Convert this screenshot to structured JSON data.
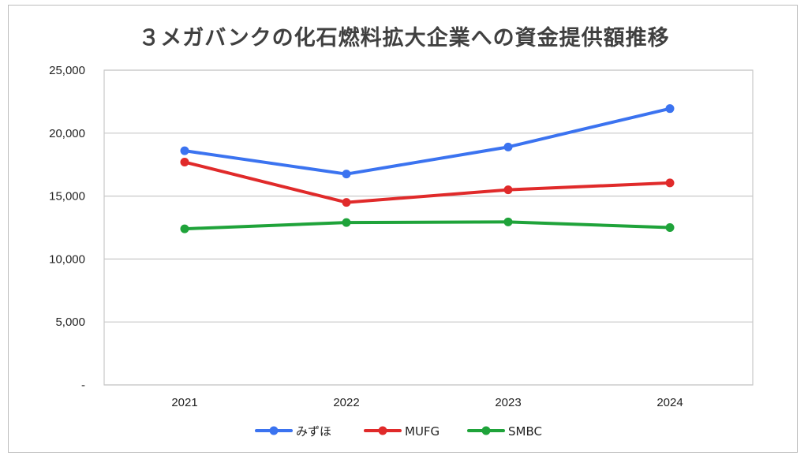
{
  "chart_data": {
    "type": "line",
    "title": "３メガバンクの化石燃料拡大企業への資金提供額推移",
    "categories": [
      "2021",
      "2022",
      "2023",
      "2024"
    ],
    "series": [
      {
        "name": "みずほ",
        "color": "#3b73f0",
        "values": [
          18600,
          16750,
          18900,
          21950
        ]
      },
      {
        "name": "MUFG",
        "color": "#e02a2a",
        "values": [
          17700,
          14500,
          15500,
          16050
        ]
      },
      {
        "name": "SMBC",
        "color": "#1fa33a",
        "values": [
          12400,
          12900,
          12950,
          12500
        ]
      }
    ],
    "ylim": [
      0,
      25000
    ],
    "yticks": [
      0,
      5000,
      10000,
      15000,
      20000,
      25000
    ],
    "ytick_labels": [
      "-",
      "5,000",
      "10,000",
      "15,000",
      "20,000",
      "25,000"
    ],
    "grid": true,
    "legend_position": "bottom"
  }
}
